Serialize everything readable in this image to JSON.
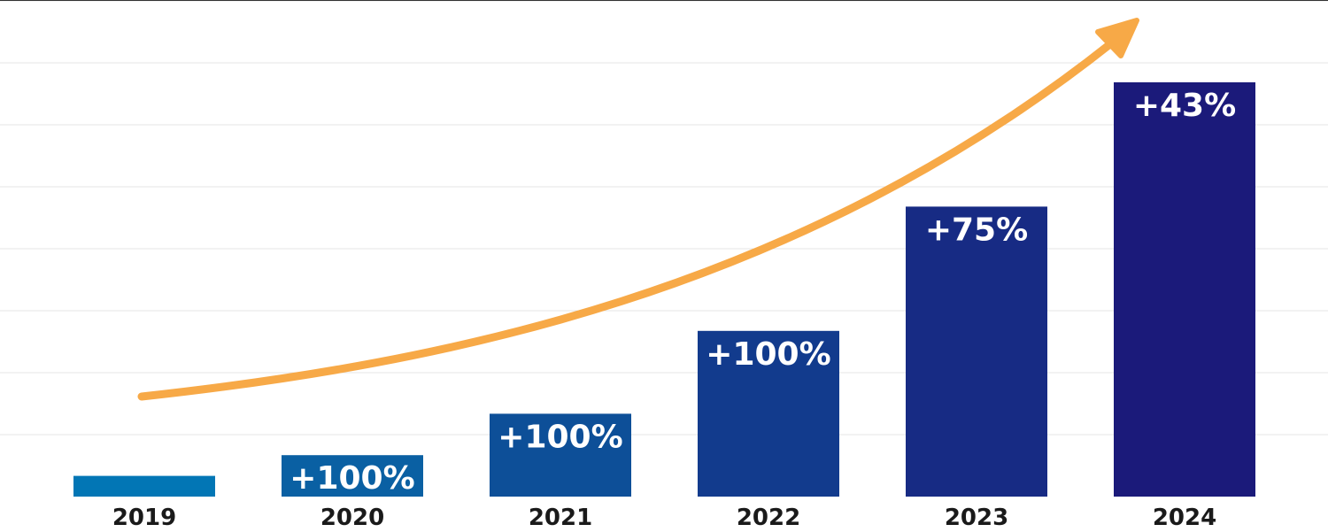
{
  "chart_data": {
    "type": "bar",
    "title": "",
    "xlabel": "",
    "ylabel": "",
    "categories": [
      "2019",
      "2020",
      "2021",
      "2022",
      "2023",
      "2024"
    ],
    "values": [
      1,
      2,
      4,
      8,
      14,
      20
    ],
    "bar_labels": [
      "",
      "+100%",
      "+100%",
      "+100%",
      "+75%",
      "+43%"
    ],
    "ylim": [
      0,
      22
    ],
    "grid": true,
    "bar_colors": [
      "#0276b5",
      "#0a60a3",
      "#0d4f98",
      "#123b8d",
      "#172b84",
      "#1b1a7a"
    ],
    "trend_arrow_color": "#f7a947",
    "grid_color": "#e6e6e6"
  }
}
